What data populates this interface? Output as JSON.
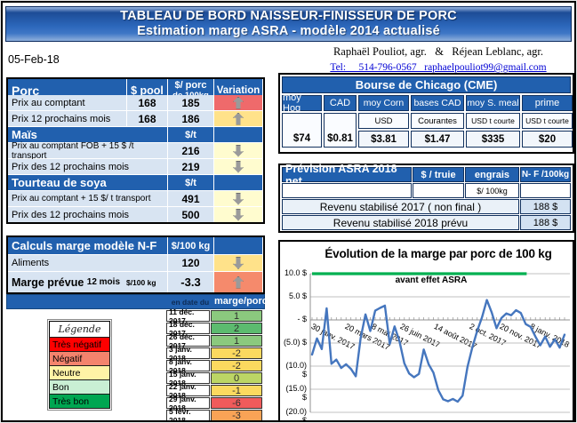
{
  "window": {
    "title_line1": "TABLEAU DE BORD NAISSEUR-FINISSEUR DE PORC",
    "title_line2": "Estimation marge ASRA - modèle 2014 actualisé"
  },
  "header": {
    "date": "05-Feb-18",
    "authors": "Raphaël Pouliot, agr.   &   Réjean Leblanc, agr.",
    "tel": "Tel:     514-796-0567   raphaelpouliot99@gmail.com"
  },
  "prices": {
    "col_label": "Porc",
    "col_pool": "$ pool",
    "col_unit1": "$/ porc",
    "col_unit2": "de 100kg",
    "col_var": "Variation",
    "rows": [
      {
        "label": "Prix au comptant",
        "pool": "168",
        "val": "185"
      },
      {
        "label": "Prix 12 prochains mois",
        "pool": "168",
        "val": "186"
      }
    ],
    "mais": {
      "label": "Maïs",
      "unit": "$/t"
    },
    "mais_rows": [
      {
        "label": "Prix au comptant  FOB + 15 $ /t transport",
        "val": "216"
      },
      {
        "label": "Prix des 12 prochains mois",
        "val": "219"
      }
    ],
    "soya": {
      "label": "Tourteau de soya",
      "unit": "$/t"
    },
    "soya_rows": [
      {
        "label": "Prix au comptant  + 15 $/ t  transport",
        "val": "491"
      },
      {
        "label": "Prix des 12 prochains mois",
        "val": "500"
      }
    ]
  },
  "calc": {
    "title": "Calculs marge  modèle N-F",
    "unit": "$/100 kg",
    "aliments_label": "Aliments",
    "aliments_val": "120",
    "marge_label": "Marge prévue",
    "marge_label2": "12 mois",
    "marge_label3": "$/100 kg",
    "marge_val": "-3.3"
  },
  "history": {
    "col_date": "en date du",
    "col_val": "marge/porc",
    "rows": [
      {
        "date": "11 déc. 2017",
        "val": "1",
        "color": "#8bc97e"
      },
      {
        "date": "18 déc. 2017",
        "val": "2",
        "color": "#5cbb6f"
      },
      {
        "date": "26 déc. 2017",
        "val": "1",
        "color": "#8bc97e"
      },
      {
        "date": "3 janv. 2018",
        "val": "-2",
        "color": "#fbd95f"
      },
      {
        "date": "8 janv. 2018",
        "val": "-2",
        "color": "#fbd95f"
      },
      {
        "date": "15 janv. 2018",
        "val": "0",
        "color": "#bcd565"
      },
      {
        "date": "22 janv. 2018",
        "val": "-1",
        "color": "#fbd95f"
      },
      {
        "date": "29 janv. 2018",
        "val": "-6",
        "color": "#f05b5b"
      },
      {
        "date": "5 févr. 2018",
        "val": "-3",
        "color": "#f9a356"
      }
    ]
  },
  "legend": {
    "title": "Légende",
    "items": [
      {
        "label": "Très négatif",
        "color": "#ff0000"
      },
      {
        "label": "Négatif",
        "color": "#f4836d"
      },
      {
        "label": "Neutre",
        "color": "#fff3a6"
      },
      {
        "label": "Bon",
        "color": "#c9efd4"
      },
      {
        "label": "Très bon",
        "color": "#00a651"
      }
    ]
  },
  "cme": {
    "title": "Bourse de Chicago (CME)",
    "cols": [
      {
        "h": "moy Hog",
        "sub": "",
        "val": "$74"
      },
      {
        "h": "CAD",
        "sub": "",
        "val": "$0.81"
      },
      {
        "h": "moy Corn",
        "sub": "USD",
        "val": "$3.81"
      },
      {
        "h": "bases CAD",
        "sub": "Courantes",
        "val": "$1.47"
      },
      {
        "h": "moy S. meal",
        "sub": "USD t courte",
        "val": "$335"
      },
      {
        "h": "prime",
        "sub": "USD t courte",
        "val": "$20"
      }
    ]
  },
  "asra": {
    "title": "Prévision ASRA 2018 net",
    "col2": "$ / truie",
    "col3": "engrais",
    "col4": "N- F /100kg",
    "sub3": "$/ 100kg",
    "rows": [
      {
        "label": "Revenu stabilisé 2017 ( non final )",
        "val": "188 $"
      },
      {
        "label": "Revenu stabilisé 2018 prévu",
        "val": "188 $"
      }
    ]
  },
  "chart_data": {
    "type": "line",
    "title": "Évolution de la marge par porc de 100 kg",
    "annotation": "avant effet ASRA",
    "ylim": [
      -20,
      10
    ],
    "grid": true,
    "legend_position": "none",
    "yticks": [
      10,
      5,
      0,
      -5,
      -10,
      -15,
      -20
    ],
    "ytick_labels": [
      "10.0 $",
      "5.0 $",
      "-    $",
      "(5.0) $",
      "(10.0) $",
      "(15.0) $",
      "(20.0) $"
    ],
    "xtick_labels": [
      "30 janv. 2017",
      "20 mars 2017",
      "8 mai 2017",
      "26 juin 2017",
      "14 août 2017",
      "2 oct. 2017",
      "20 nov. 2017",
      "8 janv. 2018"
    ],
    "xtick_indices": [
      0,
      7,
      14,
      21,
      28,
      35,
      42,
      49
    ],
    "series": [
      {
        "name": "marge hebdomadaire par porc de 100 kg",
        "color": "#4576be",
        "values": [
          -7.5,
          -4,
          -6.3,
          2.5,
          -9.5,
          -8.6,
          -10.4,
          -9.6,
          -10.6,
          -12.2,
          -4,
          1.2,
          -2.4,
          2,
          2.6,
          3.1,
          -5.2,
          -1.4,
          -4.6,
          -9.4,
          -11.6,
          -12.4,
          -11.7,
          -6.4,
          -9.6,
          -11.4,
          -15.2,
          -17.2,
          -17.6,
          -17.1,
          -17.7,
          -16.4,
          -10.2,
          -6,
          -2.4,
          0.6,
          4.3,
          1.6,
          -1.8,
          0.4,
          1.4,
          1,
          2.1,
          1.5,
          -0.9,
          -1.5,
          -3.6,
          -5.5,
          -3.6,
          -5.8,
          -4.2,
          -6,
          -3.2
        ]
      },
      {
        "name": "avant effet ASRA (référence)",
        "color": "#00b050",
        "const_value": 10,
        "span_frac": 0.85
      }
    ]
  }
}
